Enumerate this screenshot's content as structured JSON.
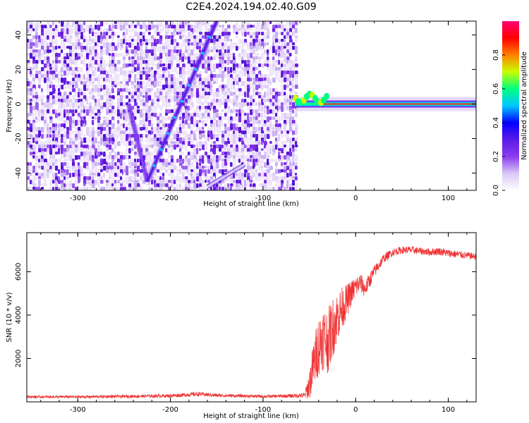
{
  "figure_title": "C2E4.2024.194.02.40.G09",
  "colors": {
    "snr_line": "#ee3333",
    "ridge": "#4422dd",
    "colormap": [
      "#ffffff",
      "#d9c8f5",
      "#8a3cf0",
      "#5a1ae8",
      "#0000ff",
      "#00c8ff",
      "#00ff80",
      "#c8ff00",
      "#ff8000",
      "#ff0000",
      "#ff0070"
    ]
  },
  "chart_data": [
    {
      "type": "heatmap",
      "title": "",
      "xlabel": "Height of straight line (km)",
      "ylabel": "Frequency (Hz)",
      "xlim": [
        -355,
        130
      ],
      "ylim": [
        -50,
        48
      ],
      "xticks": [
        -300,
        -200,
        -100,
        0,
        100
      ],
      "yticks": [
        -40,
        -20,
        0,
        20,
        40
      ],
      "colorbar": {
        "label": "Normalized spectral amplitude",
        "range": [
          0,
          1
        ],
        "ticks": [
          "0.0",
          "0.2",
          "0.4",
          "0.6",
          "0.8"
        ]
      },
      "data_extent_x": [
        -355,
        -65
      ],
      "noise_regions": [
        {
          "x": [
            -355,
            -65
          ],
          "y": [
            -50,
            48
          ],
          "level": "low",
          "texture": "speckle"
        }
      ],
      "features": [
        {
          "name": "descending branch",
          "x": [
            -245,
            -225
          ],
          "y": [
            0,
            -45
          ],
          "amplitude": 0.15
        },
        {
          "name": "rising branch",
          "x": [
            -225,
            -150
          ],
          "y": [
            -45,
            48
          ],
          "amplitude": 0.3
        },
        {
          "name": "lower arc",
          "x": [
            -160,
            -120
          ],
          "y": [
            -48,
            -35
          ],
          "amplitude": 0.12
        },
        {
          "name": "carrier line",
          "x": [
            -65,
            130
          ],
          "y": [
            0,
            0
          ],
          "amplitude": 0.9
        }
      ]
    },
    {
      "type": "line",
      "title": "",
      "xlabel": "Height of straight line (km)",
      "ylabel": "SNR (10 * v/v)",
      "xlim": [
        -355,
        130
      ],
      "ylim": [
        0,
        7800
      ],
      "xticks": [
        -300,
        -200,
        -100,
        0,
        100
      ],
      "yticks": [
        2000,
        4000,
        6000
      ],
      "series": [
        {
          "x": [
            -355,
            -300,
            -250,
            -200,
            -170,
            -150,
            -100,
            -75,
            -55,
            -50,
            -45,
            -40,
            -35,
            -30,
            -25,
            -20,
            -15,
            -10,
            -5,
            0,
            5,
            10,
            15,
            20,
            25,
            30,
            40,
            50,
            60,
            70,
            80,
            90,
            100,
            110,
            120,
            130
          ],
          "y": [
            230,
            230,
            250,
            280,
            360,
            300,
            250,
            270,
            300,
            800,
            1800,
            2600,
            3000,
            2800,
            3400,
            3900,
            4300,
            4600,
            5000,
            5300,
            5500,
            5200,
            5600,
            6000,
            6300,
            6600,
            6900,
            7000,
            7000,
            6950,
            6900,
            6950,
            6850,
            6800,
            6750,
            6700
          ],
          "noise_amplitude": [
            60,
            60,
            70,
            80,
            100,
            80,
            70,
            80,
            120,
            700,
            1200,
            1400,
            1500,
            1500,
            1400,
            1200,
            1000,
            800,
            600,
            500,
            450,
            400,
            350,
            300,
            250,
            200,
            180,
            170,
            170,
            170,
            170,
            180,
            180,
            180,
            160,
            150
          ]
        }
      ]
    }
  ]
}
